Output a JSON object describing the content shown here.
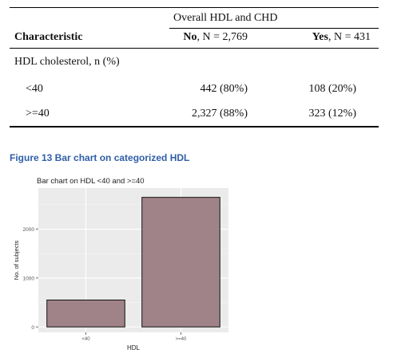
{
  "table": {
    "spanner": "Overall HDL and CHD",
    "header": {
      "characteristic": "Characteristic",
      "no_bold": "No",
      "no_rest": ", N = 2,769",
      "yes_bold": "Yes",
      "yes_rest": ", N = 431"
    },
    "group_label": "HDL cholesterol, n (%)",
    "rows": [
      {
        "label": "<40",
        "no": "442 (80%)",
        "yes": "108 (20%)"
      },
      {
        "label": ">=40",
        "no": "2,327 (88%)",
        "yes": "323 (12%)"
      }
    ]
  },
  "figure_caption": "Figure 13 Bar chart on categorized HDL",
  "chart_data": {
    "type": "bar",
    "title": "Bar chart on HDL <40 and >=40",
    "xlabel": "HDL",
    "ylabel": "No. of subjects",
    "categories": [
      "<40",
      ">=40"
    ],
    "values": [
      550,
      2650
    ],
    "ylim": [
      -110,
      2840
    ],
    "yticks": [
      0,
      1000,
      2000
    ],
    "ytick_labels": [
      "0",
      "1000",
      "2000"
    ],
    "grid": true,
    "bar_color": "#a08388",
    "panel_color": "#ebebeb"
  }
}
